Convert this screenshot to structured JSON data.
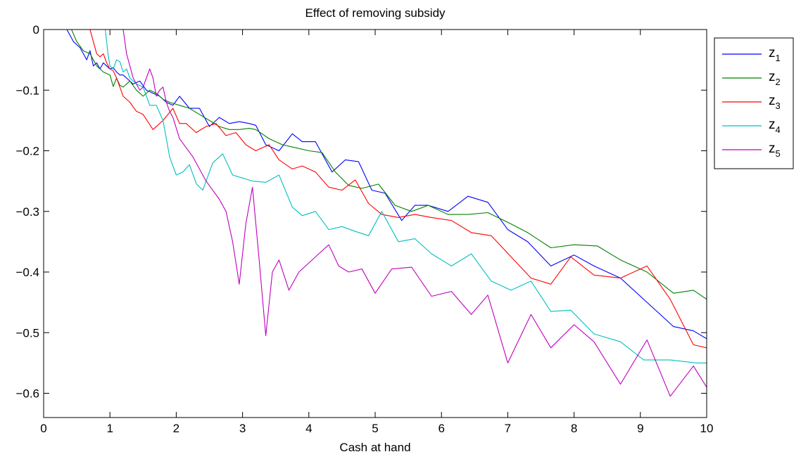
{
  "chart_data": {
    "type": "line",
    "title": "Effect of removing subsidy",
    "xlabel": "Cash at hand",
    "ylabel": "",
    "xlim": [
      0,
      10
    ],
    "ylim": [
      -0.64,
      0
    ],
    "xticks": [
      0,
      1,
      2,
      3,
      4,
      5,
      6,
      7,
      8,
      9,
      10
    ],
    "yticks": [
      0,
      -0.1,
      -0.2,
      -0.3,
      -0.4,
      -0.5,
      -0.6
    ],
    "xtick_labels": [
      "0",
      "1",
      "2",
      "3",
      "4",
      "5",
      "6",
      "7",
      "8",
      "9",
      "10"
    ],
    "ytick_labels": [
      "0",
      "−0.1",
      "−0.2",
      "−0.3",
      "−0.4",
      "−0.5",
      "−0.6"
    ],
    "grid": false,
    "legend_position": "outside-right-top",
    "series": [
      {
        "name": "z",
        "subscript": "1",
        "color": "#0000ff",
        "x": [
          0.35,
          0.4,
          0.45,
          0.5,
          0.55,
          0.6,
          0.65,
          0.7,
          0.75,
          0.8,
          0.85,
          0.9,
          0.95,
          1.0,
          1.05,
          1.1,
          1.15,
          1.2,
          1.25,
          1.3,
          1.35,
          1.45,
          1.55,
          1.65,
          1.75,
          1.85,
          1.95,
          2.05,
          2.2,
          2.35,
          2.5,
          2.65,
          2.8,
          2.95,
          3.1,
          3.2,
          3.35,
          3.55,
          3.75,
          3.9,
          4.1,
          4.35,
          4.55,
          4.75,
          4.95,
          5.15,
          5.4,
          5.6,
          5.8,
          6.1,
          6.4,
          6.7,
          7.0,
          7.3,
          7.65,
          8.0,
          8.3,
          8.7,
          9.1,
          9.5,
          9.8,
          10.0
        ],
        "y": [
          0,
          -0.01,
          -0.02,
          -0.025,
          -0.03,
          -0.04,
          -0.05,
          -0.035,
          -0.06,
          -0.055,
          -0.065,
          -0.055,
          -0.06,
          -0.065,
          -0.063,
          -0.07,
          -0.075,
          -0.075,
          -0.08,
          -0.085,
          -0.09,
          -0.085,
          -0.1,
          -0.105,
          -0.11,
          -0.12,
          -0.125,
          -0.11,
          -0.13,
          -0.13,
          -0.16,
          -0.145,
          -0.155,
          -0.152,
          -0.155,
          -0.158,
          -0.19,
          -0.2,
          -0.172,
          -0.185,
          -0.185,
          -0.235,
          -0.215,
          -0.218,
          -0.265,
          -0.27,
          -0.315,
          -0.29,
          -0.29,
          -0.3,
          -0.275,
          -0.285,
          -0.33,
          -0.35,
          -0.39,
          -0.372,
          -0.39,
          -0.41,
          -0.45,
          -0.49,
          -0.497,
          -0.51
        ]
      },
      {
        "name": "z",
        "subscript": "2",
        "color": "#008000",
        "x": [
          0.42,
          0.5,
          0.6,
          0.7,
          0.8,
          0.9,
          1.0,
          1.05,
          1.1,
          1.15,
          1.2,
          1.3,
          1.4,
          1.5,
          1.6,
          1.7,
          1.8,
          1.9,
          2.05,
          2.2,
          2.35,
          2.5,
          2.65,
          2.8,
          2.95,
          3.1,
          3.2,
          3.4,
          3.6,
          3.8,
          4.0,
          4.2,
          4.4,
          4.6,
          4.8,
          5.05,
          5.3,
          5.55,
          5.8,
          6.1,
          6.4,
          6.7,
          7.0,
          7.3,
          7.65,
          8.0,
          8.35,
          8.7,
          9.1,
          9.5,
          9.8,
          10.0
        ],
        "y": [
          0,
          -0.02,
          -0.035,
          -0.04,
          -0.06,
          -0.07,
          -0.075,
          -0.094,
          -0.08,
          -0.092,
          -0.095,
          -0.085,
          -0.1,
          -0.11,
          -0.1,
          -0.105,
          -0.115,
          -0.12,
          -0.125,
          -0.13,
          -0.14,
          -0.15,
          -0.16,
          -0.165,
          -0.165,
          -0.163,
          -0.165,
          -0.18,
          -0.19,
          -0.195,
          -0.2,
          -0.203,
          -0.235,
          -0.257,
          -0.262,
          -0.255,
          -0.29,
          -0.3,
          -0.29,
          -0.305,
          -0.305,
          -0.302,
          -0.318,
          -0.335,
          -0.36,
          -0.355,
          -0.357,
          -0.38,
          -0.4,
          -0.435,
          -0.43,
          -0.445
        ]
      },
      {
        "name": "z",
        "subscript": "3",
        "color": "#ff0000",
        "x": [
          0.7,
          0.75,
          0.8,
          0.85,
          0.9,
          0.95,
          1.0,
          1.05,
          1.1,
          1.15,
          1.2,
          1.3,
          1.4,
          1.5,
          1.65,
          1.8,
          1.95,
          2.05,
          2.15,
          2.3,
          2.45,
          2.6,
          2.75,
          2.9,
          3.05,
          3.2,
          3.4,
          3.55,
          3.75,
          3.9,
          4.1,
          4.3,
          4.5,
          4.7,
          4.9,
          5.1,
          5.35,
          5.6,
          5.85,
          6.15,
          6.45,
          6.75,
          7.05,
          7.35,
          7.65,
          7.95,
          8.3,
          8.7,
          9.1,
          9.45,
          9.8,
          10.0
        ],
        "y": [
          0,
          -0.02,
          -0.04,
          -0.045,
          -0.04,
          -0.055,
          -0.065,
          -0.068,
          -0.08,
          -0.095,
          -0.11,
          -0.12,
          -0.135,
          -0.14,
          -0.165,
          -0.15,
          -0.13,
          -0.155,
          -0.155,
          -0.17,
          -0.16,
          -0.155,
          -0.175,
          -0.17,
          -0.19,
          -0.2,
          -0.19,
          -0.215,
          -0.23,
          -0.225,
          -0.235,
          -0.26,
          -0.265,
          -0.248,
          -0.287,
          -0.305,
          -0.31,
          -0.305,
          -0.31,
          -0.315,
          -0.335,
          -0.34,
          -0.375,
          -0.41,
          -0.42,
          -0.375,
          -0.405,
          -0.41,
          -0.39,
          -0.445,
          -0.52,
          -0.525
        ]
      },
      {
        "name": "z",
        "subscript": "4",
        "color": "#00bfbf",
        "x": [
          0.93,
          0.97,
          1.0,
          1.05,
          1.1,
          1.15,
          1.2,
          1.25,
          1.3,
          1.4,
          1.5,
          1.6,
          1.7,
          1.8,
          1.9,
          2.0,
          2.1,
          2.2,
          2.3,
          2.4,
          2.55,
          2.7,
          2.85,
          3.0,
          3.15,
          3.35,
          3.55,
          3.75,
          3.9,
          4.1,
          4.3,
          4.5,
          4.7,
          4.9,
          5.1,
          5.35,
          5.6,
          5.85,
          6.15,
          6.45,
          6.75,
          7.05,
          7.35,
          7.65,
          7.95,
          8.3,
          8.7,
          9.05,
          9.45,
          9.85,
          10.0
        ],
        "y": [
          0,
          -0.04,
          -0.06,
          -0.065,
          -0.05,
          -0.053,
          -0.07,
          -0.065,
          -0.08,
          -0.09,
          -0.095,
          -0.125,
          -0.125,
          -0.15,
          -0.21,
          -0.24,
          -0.235,
          -0.223,
          -0.254,
          -0.265,
          -0.22,
          -0.205,
          -0.24,
          -0.245,
          -0.25,
          -0.252,
          -0.24,
          -0.293,
          -0.307,
          -0.3,
          -0.33,
          -0.325,
          -0.333,
          -0.34,
          -0.3,
          -0.35,
          -0.345,
          -0.37,
          -0.39,
          -0.37,
          -0.415,
          -0.43,
          -0.415,
          -0.465,
          -0.463,
          -0.502,
          -0.515,
          -0.545,
          -0.545,
          -0.55,
          -0.55
        ]
      },
      {
        "name": "z",
        "subscript": "5",
        "color": "#bf00bf",
        "x": [
          1.2,
          1.25,
          1.3,
          1.35,
          1.4,
          1.45,
          1.5,
          1.55,
          1.6,
          1.65,
          1.7,
          1.75,
          1.8,
          1.85,
          1.9,
          1.95,
          2.05,
          2.15,
          2.25,
          2.35,
          2.45,
          2.55,
          2.65,
          2.75,
          2.85,
          2.95,
          3.05,
          3.15,
          3.25,
          3.35,
          3.45,
          3.55,
          3.7,
          3.85,
          4.0,
          4.15,
          4.3,
          4.45,
          4.6,
          4.8,
          5.0,
          5.25,
          5.55,
          5.85,
          6.15,
          6.45,
          6.7,
          7.0,
          7.35,
          7.65,
          8.0,
          8.3,
          8.7,
          9.1,
          9.45,
          9.8,
          10.0
        ],
        "y": [
          0,
          -0.04,
          -0.06,
          -0.08,
          -0.09,
          -0.1,
          -0.095,
          -0.08,
          -0.065,
          -0.08,
          -0.11,
          -0.1,
          -0.095,
          -0.12,
          -0.135,
          -0.145,
          -0.18,
          -0.195,
          -0.21,
          -0.23,
          -0.25,
          -0.265,
          -0.28,
          -0.3,
          -0.35,
          -0.42,
          -0.32,
          -0.26,
          -0.38,
          -0.505,
          -0.4,
          -0.38,
          -0.43,
          -0.4,
          -0.385,
          -0.37,
          -0.355,
          -0.39,
          -0.4,
          -0.395,
          -0.435,
          -0.395,
          -0.392,
          -0.44,
          -0.432,
          -0.47,
          -0.438,
          -0.55,
          -0.47,
          -0.525,
          -0.487,
          -0.515,
          -0.585,
          -0.512,
          -0.605,
          -0.555,
          -0.59
        ]
      }
    ]
  }
}
